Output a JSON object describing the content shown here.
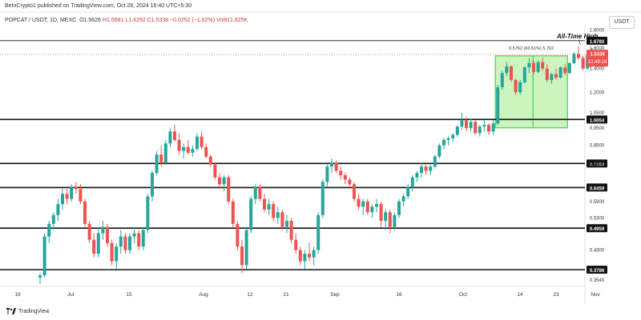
{
  "header": {
    "publisher_line": "BeInCrypto1 published on TradingView.com, Oct 28, 2024 16:40 UTC+5:30",
    "symbol": "POPCAT / USDT, 1D, MEXC",
    "open": "O1.5626",
    "high": "H1.5681",
    "low": "L1.4292",
    "close": "C1.5338",
    "change": "−0.0252 (−1.62%)",
    "volume": "Vol911.825K",
    "currency": "USDT"
  },
  "branding": {
    "label": "TradingView"
  },
  "colors": {
    "up": "#26a69a",
    "down": "#ef5350",
    "range_fill": "#b9f0a8",
    "range_border": "#35c335",
    "level_line": "#111111",
    "price_tag": "#ef5350"
  },
  "chart_data": {
    "type": "candlestick",
    "ylim": [
      0.345,
      1.87
    ],
    "y_ticks": [
      "1.8000",
      "1.6000",
      "1.4000",
      "1.2000",
      "1.0500",
      "0.9500",
      "0.8500",
      "0.7500",
      "0.5900",
      "0.5300",
      "0.4300",
      "0.3540"
    ],
    "x_ticks": [
      "19",
      "Jul",
      "15",
      "Aug",
      "12",
      "21",
      "Sep",
      "16",
      "Oct",
      "14",
      "23",
      "Nov"
    ],
    "levels": [
      {
        "value": "1.6780",
        "y": 1.678,
        "style": "thin"
      },
      {
        "value": "1.0054",
        "y": 1.0054,
        "style": "bold"
      },
      {
        "value": "0.7553",
        "y": 0.7553,
        "style": "bold"
      },
      {
        "value": "0.6459",
        "y": 0.6459,
        "style": "bold"
      },
      {
        "value": "0.4959",
        "y": 0.4959,
        "style": "bold"
      },
      {
        "value": "0.3786",
        "y": 0.3786,
        "style": "bold"
      }
    ],
    "current_price": {
      "value": "1.5338",
      "countdown": "12:49:18"
    },
    "annotations": [
      {
        "text": "All-Time High"
      },
      {
        "text": "0.5762 (60.51%) 5,762"
      }
    ],
    "range_box": {
      "from_index": 102,
      "to_index": 117,
      "low": 0.952,
      "high": 1.52
    },
    "candles": [
      [
        0.36,
        0.37,
        0.345,
        0.365
      ],
      [
        0.365,
        0.48,
        0.36,
        0.47
      ],
      [
        0.47,
        0.52,
        0.45,
        0.51
      ],
      [
        0.51,
        0.55,
        0.49,
        0.54
      ],
      [
        0.54,
        0.6,
        0.52,
        0.58
      ],
      [
        0.58,
        0.64,
        0.56,
        0.62
      ],
      [
        0.62,
        0.64,
        0.58,
        0.6
      ],
      [
        0.6,
        0.66,
        0.59,
        0.65
      ],
      [
        0.65,
        0.67,
        0.62,
        0.64
      ],
      [
        0.64,
        0.66,
        0.58,
        0.59
      ],
      [
        0.59,
        0.6,
        0.5,
        0.51
      ],
      [
        0.51,
        0.52,
        0.45,
        0.46
      ],
      [
        0.46,
        0.48,
        0.41,
        0.42
      ],
      [
        0.42,
        0.5,
        0.41,
        0.48
      ],
      [
        0.48,
        0.52,
        0.46,
        0.5
      ],
      [
        0.5,
        0.51,
        0.44,
        0.45
      ],
      [
        0.45,
        0.46,
        0.39,
        0.4
      ],
      [
        0.4,
        0.45,
        0.38,
        0.44
      ],
      [
        0.44,
        0.49,
        0.42,
        0.47
      ],
      [
        0.47,
        0.48,
        0.42,
        0.43
      ],
      [
        0.43,
        0.48,
        0.42,
        0.47
      ],
      [
        0.47,
        0.5,
        0.45,
        0.48
      ],
      [
        0.48,
        0.49,
        0.43,
        0.44
      ],
      [
        0.44,
        0.5,
        0.43,
        0.49
      ],
      [
        0.49,
        0.62,
        0.48,
        0.61
      ],
      [
        0.61,
        0.72,
        0.59,
        0.71
      ],
      [
        0.71,
        0.82,
        0.7,
        0.8
      ],
      [
        0.8,
        0.85,
        0.74,
        0.76
      ],
      [
        0.76,
        0.88,
        0.75,
        0.86
      ],
      [
        0.86,
        0.95,
        0.84,
        0.93
      ],
      [
        0.93,
        0.97,
        0.87,
        0.88
      ],
      [
        0.88,
        0.92,
        0.8,
        0.82
      ],
      [
        0.82,
        0.86,
        0.78,
        0.84
      ],
      [
        0.84,
        0.88,
        0.8,
        0.81
      ],
      [
        0.81,
        0.85,
        0.79,
        0.83
      ],
      [
        0.83,
        0.92,
        0.82,
        0.9
      ],
      [
        0.9,
        0.93,
        0.83,
        0.84
      ],
      [
        0.84,
        0.86,
        0.78,
        0.79
      ],
      [
        0.79,
        0.8,
        0.74,
        0.75
      ],
      [
        0.75,
        0.76,
        0.68,
        0.69
      ],
      [
        0.69,
        0.71,
        0.64,
        0.66
      ],
      [
        0.66,
        0.7,
        0.63,
        0.69
      ],
      [
        0.69,
        0.7,
        0.58,
        0.59
      ],
      [
        0.59,
        0.6,
        0.5,
        0.51
      ],
      [
        0.51,
        0.52,
        0.43,
        0.44
      ],
      [
        0.44,
        0.46,
        0.37,
        0.39
      ],
      [
        0.39,
        0.5,
        0.38,
        0.49
      ],
      [
        0.49,
        0.61,
        0.48,
        0.6
      ],
      [
        0.6,
        0.66,
        0.58,
        0.65
      ],
      [
        0.65,
        0.66,
        0.59,
        0.6
      ],
      [
        0.6,
        0.62,
        0.55,
        0.56
      ],
      [
        0.56,
        0.6,
        0.54,
        0.58
      ],
      [
        0.58,
        0.59,
        0.52,
        0.53
      ],
      [
        0.53,
        0.57,
        0.51,
        0.55
      ],
      [
        0.55,
        0.56,
        0.49,
        0.5
      ],
      [
        0.5,
        0.54,
        0.48,
        0.52
      ],
      [
        0.52,
        0.53,
        0.45,
        0.46
      ],
      [
        0.46,
        0.48,
        0.42,
        0.43
      ],
      [
        0.43,
        0.44,
        0.39,
        0.4
      ],
      [
        0.4,
        0.43,
        0.38,
        0.42
      ],
      [
        0.42,
        0.45,
        0.4,
        0.41
      ],
      [
        0.41,
        0.44,
        0.39,
        0.43
      ],
      [
        0.43,
        0.55,
        0.42,
        0.54
      ],
      [
        0.54,
        0.68,
        0.53,
        0.67
      ],
      [
        0.67,
        0.75,
        0.65,
        0.74
      ],
      [
        0.74,
        0.78,
        0.71,
        0.76
      ],
      [
        0.76,
        0.77,
        0.71,
        0.72
      ],
      [
        0.72,
        0.74,
        0.68,
        0.7
      ],
      [
        0.7,
        0.71,
        0.66,
        0.68
      ],
      [
        0.68,
        0.69,
        0.64,
        0.66
      ],
      [
        0.66,
        0.67,
        0.59,
        0.6
      ],
      [
        0.6,
        0.62,
        0.56,
        0.57
      ],
      [
        0.57,
        0.6,
        0.54,
        0.59
      ],
      [
        0.59,
        0.6,
        0.54,
        0.55
      ],
      [
        0.55,
        0.58,
        0.53,
        0.57
      ],
      [
        0.57,
        0.6,
        0.55,
        0.58
      ],
      [
        0.58,
        0.59,
        0.5,
        0.52
      ],
      [
        0.52,
        0.56,
        0.49,
        0.55
      ],
      [
        0.55,
        0.56,
        0.48,
        0.5
      ],
      [
        0.5,
        0.55,
        0.49,
        0.54
      ],
      [
        0.54,
        0.6,
        0.53,
        0.59
      ],
      [
        0.59,
        0.62,
        0.57,
        0.61
      ],
      [
        0.61,
        0.66,
        0.6,
        0.65
      ],
      [
        0.65,
        0.7,
        0.63,
        0.69
      ],
      [
        0.69,
        0.72,
        0.67,
        0.71
      ],
      [
        0.71,
        0.76,
        0.69,
        0.74
      ],
      [
        0.74,
        0.75,
        0.7,
        0.72
      ],
      [
        0.72,
        0.75,
        0.7,
        0.74
      ],
      [
        0.74,
        0.8,
        0.73,
        0.79
      ],
      [
        0.79,
        0.86,
        0.78,
        0.85
      ],
      [
        0.85,
        0.89,
        0.83,
        0.88
      ],
      [
        0.88,
        0.9,
        0.85,
        0.89
      ],
      [
        0.89,
        0.92,
        0.87,
        0.91
      ],
      [
        0.91,
        0.97,
        0.9,
        0.96
      ],
      [
        0.96,
        1.05,
        0.94,
        1.0
      ],
      [
        1.0,
        1.02,
        0.93,
        0.95
      ],
      [
        0.95,
        1.01,
        0.93,
        0.99
      ],
      [
        0.99,
        1.0,
        0.91,
        0.92
      ],
      [
        0.92,
        0.97,
        0.9,
        0.96
      ],
      [
        0.96,
        1.0,
        0.93,
        0.97
      ],
      [
        0.97,
        0.98,
        0.91,
        0.93
      ],
      [
        0.93,
        1.0,
        0.91,
        0.98
      ],
      [
        0.98,
        1.26,
        0.97,
        1.24
      ],
      [
        1.24,
        1.38,
        1.22,
        1.36
      ],
      [
        1.36,
        1.46,
        1.33,
        1.42
      ],
      [
        1.42,
        1.43,
        1.28,
        1.3
      ],
      [
        1.3,
        1.31,
        1.18,
        1.2
      ],
      [
        1.2,
        1.3,
        1.18,
        1.28
      ],
      [
        1.28,
        1.42,
        1.27,
        1.41
      ],
      [
        1.41,
        1.5,
        1.36,
        1.45
      ],
      [
        1.45,
        1.47,
        1.35,
        1.37
      ],
      [
        1.37,
        1.48,
        1.36,
        1.46
      ],
      [
        1.46,
        1.5,
        1.38,
        1.4
      ],
      [
        1.4,
        1.44,
        1.28,
        1.3
      ],
      [
        1.3,
        1.36,
        1.27,
        1.35
      ],
      [
        1.35,
        1.4,
        1.3,
        1.32
      ],
      [
        1.32,
        1.42,
        1.31,
        1.41
      ],
      [
        1.41,
        1.44,
        1.34,
        1.36
      ],
      [
        1.36,
        1.46,
        1.35,
        1.45
      ],
      [
        1.45,
        1.56,
        1.44,
        1.54
      ],
      [
        1.54,
        1.62,
        1.48,
        1.5
      ],
      [
        1.5,
        1.52,
        1.38,
        1.4
      ],
      [
        1.4,
        1.55,
        1.39,
        1.53
      ],
      [
        1.53,
        1.6,
        1.5,
        1.55
      ],
      [
        1.5626,
        1.5681,
        1.4292,
        1.5338
      ]
    ]
  }
}
